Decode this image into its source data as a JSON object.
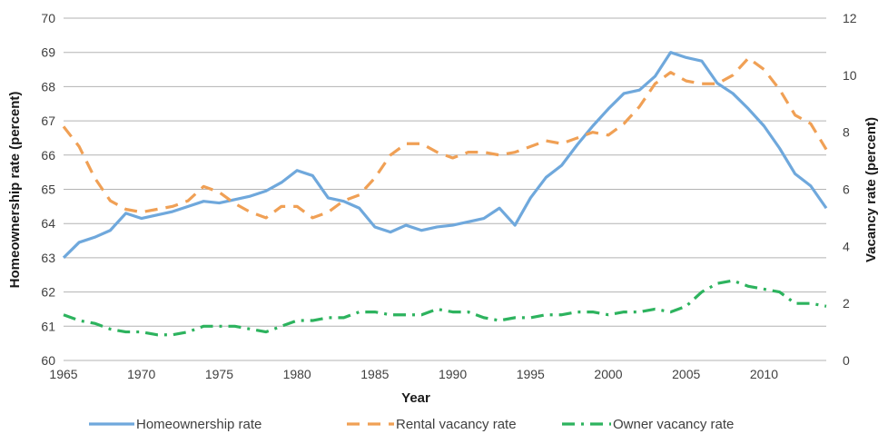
{
  "chart_data": {
    "type": "line",
    "title": "",
    "xlabel": "Year",
    "ylabel_left": "Homeownership rate (percent)",
    "ylabel_right": "Vacancy rate (percent)",
    "xlim": [
      1965,
      2014
    ],
    "x_ticks": [
      1965,
      1970,
      1975,
      1980,
      1985,
      1990,
      1995,
      2000,
      2005,
      2010
    ],
    "ylim_left": [
      60,
      70
    ],
    "y_ticks_left": [
      60,
      61,
      62,
      63,
      64,
      65,
      66,
      67,
      68,
      69,
      70
    ],
    "ylim_right": [
      0,
      12
    ],
    "y_ticks_right": [
      0,
      2,
      4,
      6,
      8,
      10,
      12
    ],
    "grid": "horizontal",
    "legend_position": "bottom",
    "series": [
      {
        "name": "Homeownership rate",
        "axis": "left",
        "color": "#6fa8dc",
        "style": "solid",
        "x": [
          1965,
          1966,
          1967,
          1968,
          1969,
          1970,
          1971,
          1972,
          1973,
          1974,
          1975,
          1976,
          1977,
          1978,
          1979,
          1980,
          1981,
          1982,
          1983,
          1984,
          1985,
          1986,
          1987,
          1988,
          1989,
          1990,
          1991,
          1992,
          1993,
          1994,
          1995,
          1996,
          1997,
          1998,
          1999,
          2000,
          2001,
          2002,
          2003,
          2004,
          2005,
          2006,
          2007,
          2008,
          2009,
          2010,
          2011,
          2012,
          2013,
          2014
        ],
        "values": [
          63.0,
          63.45,
          63.6,
          63.8,
          64.3,
          64.15,
          64.25,
          64.35,
          64.5,
          64.65,
          64.6,
          64.7,
          64.8,
          64.95,
          65.2,
          65.55,
          65.4,
          64.75,
          64.65,
          64.45,
          63.9,
          63.75,
          63.95,
          63.8,
          63.9,
          63.95,
          64.05,
          64.15,
          64.45,
          63.95,
          64.75,
          65.35,
          65.7,
          66.3,
          66.85,
          67.35,
          67.8,
          67.9,
          68.3,
          69.0,
          68.85,
          68.75,
          68.1,
          67.8,
          67.35,
          66.85,
          66.2,
          65.45,
          65.1,
          64.45
        ]
      },
      {
        "name": "Rental vacancy rate",
        "axis": "right",
        "color": "#f0a055",
        "style": "dashed",
        "x": [
          1965,
          1966,
          1967,
          1968,
          1969,
          1970,
          1971,
          1972,
          1973,
          1974,
          1975,
          1976,
          1977,
          1978,
          1979,
          1980,
          1981,
          1982,
          1983,
          1984,
          1985,
          1986,
          1987,
          1988,
          1989,
          1990,
          1991,
          1992,
          1993,
          1994,
          1995,
          1996,
          1997,
          1998,
          1999,
          2000,
          2001,
          2002,
          2003,
          2004,
          2005,
          2006,
          2007,
          2008,
          2009,
          2010,
          2011,
          2012,
          2013,
          2014
        ],
        "values": [
          8.2,
          7.5,
          6.4,
          5.6,
          5.3,
          5.2,
          5.3,
          5.4,
          5.6,
          6.1,
          5.9,
          5.5,
          5.2,
          5.0,
          5.4,
          5.4,
          5.0,
          5.2,
          5.6,
          5.8,
          6.4,
          7.2,
          7.6,
          7.6,
          7.3,
          7.1,
          7.3,
          7.3,
          7.2,
          7.3,
          7.5,
          7.7,
          7.6,
          7.8,
          8.0,
          7.9,
          8.3,
          8.9,
          9.7,
          10.1,
          9.8,
          9.7,
          9.7,
          10.0,
          10.6,
          10.2,
          9.5,
          8.6,
          8.3,
          7.4
        ]
      },
      {
        "name": "Owner vacancy rate",
        "axis": "right",
        "color": "#2db35e",
        "style": "dashdot",
        "x": [
          1965,
          1966,
          1967,
          1968,
          1969,
          1970,
          1971,
          1972,
          1973,
          1974,
          1975,
          1976,
          1977,
          1978,
          1979,
          1980,
          1981,
          1982,
          1983,
          1984,
          1985,
          1986,
          1987,
          1988,
          1989,
          1990,
          1991,
          1992,
          1993,
          1994,
          1995,
          1996,
          1997,
          1998,
          1999,
          2000,
          2001,
          2002,
          2003,
          2004,
          2005,
          2006,
          2007,
          2008,
          2009,
          2010,
          2011,
          2012,
          2013,
          2014
        ],
        "values": [
          1.6,
          1.4,
          1.3,
          1.1,
          1.0,
          1.0,
          0.9,
          0.9,
          1.0,
          1.2,
          1.2,
          1.2,
          1.1,
          1.0,
          1.2,
          1.4,
          1.4,
          1.5,
          1.5,
          1.7,
          1.7,
          1.6,
          1.6,
          1.6,
          1.8,
          1.7,
          1.7,
          1.5,
          1.4,
          1.5,
          1.5,
          1.6,
          1.6,
          1.7,
          1.7,
          1.6,
          1.7,
          1.7,
          1.8,
          1.7,
          1.9,
          2.4,
          2.7,
          2.8,
          2.6,
          2.5,
          2.4,
          2.0,
          2.0,
          1.9
        ]
      }
    ]
  }
}
